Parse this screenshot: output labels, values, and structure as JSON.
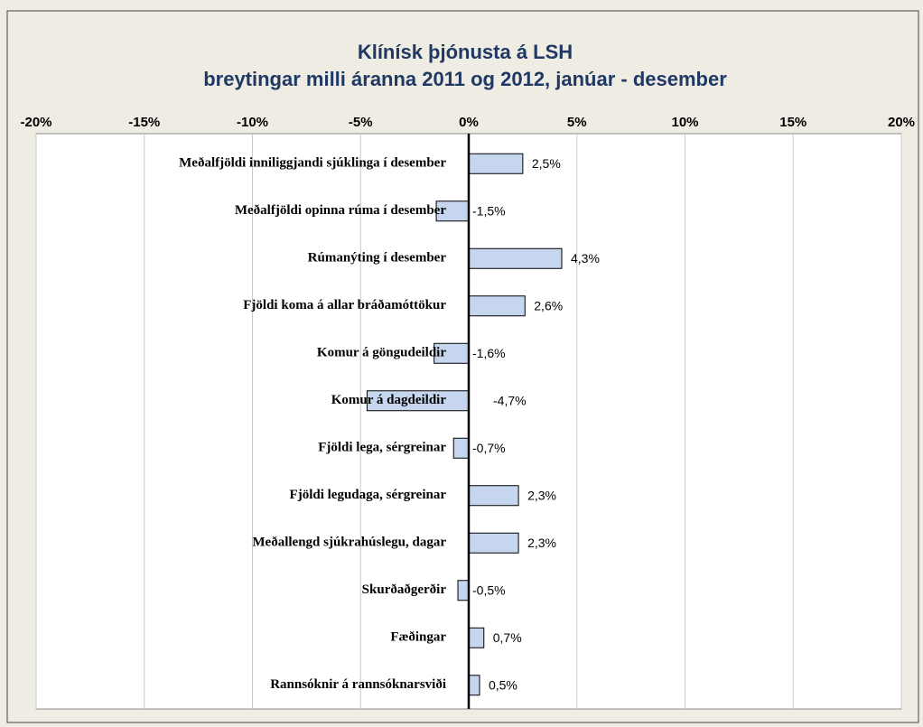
{
  "chart_data": {
    "type": "hbar",
    "title": "Klínísk þjónusta á LSH",
    "subtitle": "breytingar milli áranna 2011 og 2012,  janúar - desember",
    "categories": [
      "Meðalfjöldi inniliggjandi sjúklinga í desember",
      "Meðalfjöldi opinna rúma í desember",
      "Rúmanýting í desember",
      "Fjöldi koma á allar bráðamóttökur",
      "Komur á göngudeildir",
      "Komur á dagdeildir",
      "Fjöldi lega, sérgreinar",
      "Fjöldi legudaga, sérgreinar",
      "Meðallengd sjúkrahúslegu, dagar",
      "Skurðaðgerðir",
      "Fæðingar",
      "Rannsóknir á rannsóknarsviði"
    ],
    "values": [
      2.5,
      -1.5,
      4.3,
      2.6,
      -1.6,
      -4.7,
      -0.7,
      2.3,
      2.3,
      -0.5,
      0.7,
      0.5
    ],
    "value_labels": [
      "2,5%",
      "-1,5%",
      "4,3%",
      "2,6%",
      "-1,6%",
      "-4,7%",
      "-0,7%",
      "2,3%",
      "2,3%",
      "-0,5%",
      "0,7%",
      "0,5%"
    ],
    "color": "#c6d6ef",
    "xlim": [
      -20,
      20
    ],
    "xticks": [
      {
        "value": -20,
        "label": "-20%"
      },
      {
        "value": -15,
        "label": "-15%"
      },
      {
        "value": -10,
        "label": "-10%"
      },
      {
        "value": -5,
        "label": "-5%"
      },
      {
        "value": 0,
        "label": "0%"
      },
      {
        "value": 5,
        "label": "5%"
      },
      {
        "value": 10,
        "label": "10%"
      },
      {
        "value": 15,
        "label": "15%"
      },
      {
        "value": 20,
        "label": "20%"
      }
    ],
    "grid": true
  }
}
